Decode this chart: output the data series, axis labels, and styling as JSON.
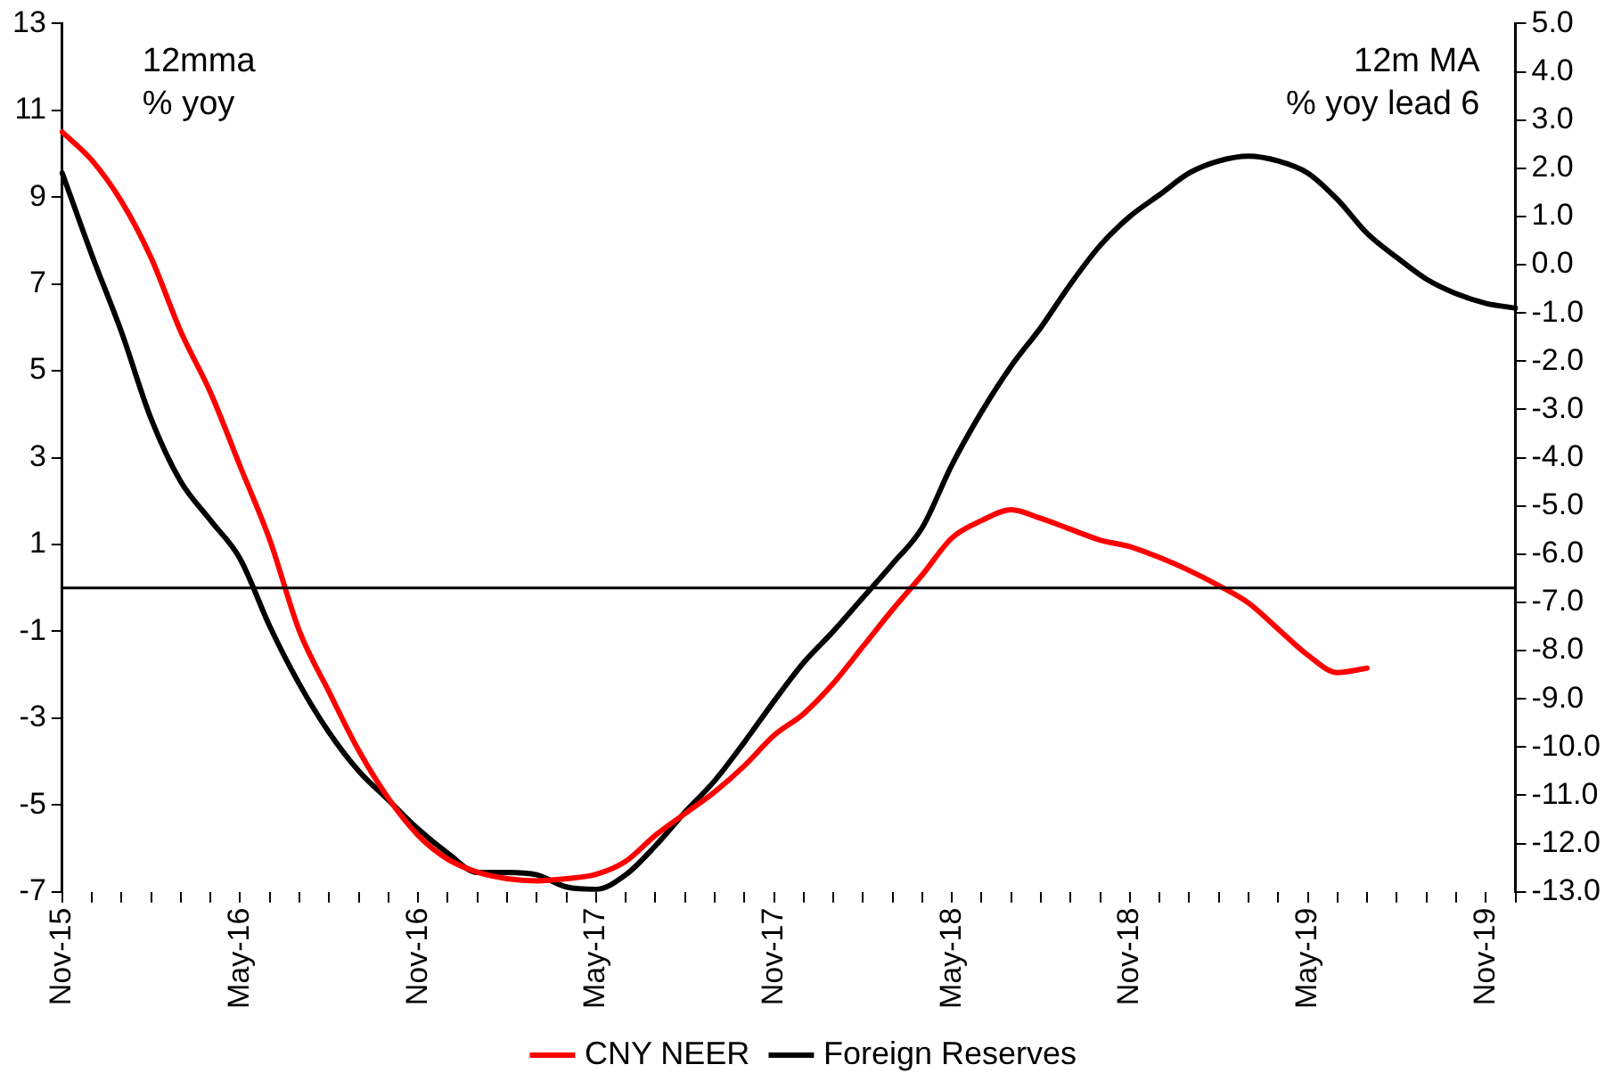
{
  "chart_data": {
    "type": "line",
    "categories": [
      "Nov-15",
      null,
      null,
      null,
      null,
      null,
      "May-16",
      null,
      null,
      null,
      null,
      null,
      "Nov-16",
      null,
      null,
      null,
      null,
      null,
      "May-17",
      null,
      null,
      null,
      null,
      null,
      "Nov-17",
      null,
      null,
      null,
      null,
      null,
      "May-18",
      null,
      null,
      null,
      null,
      null,
      "Nov-18",
      null,
      null,
      null,
      null,
      null,
      "May-19",
      null,
      null,
      null,
      null,
      null,
      "Nov-19",
      null
    ],
    "series": [
      {
        "name": "CNY NEER",
        "color": "#ff0000",
        "values": [
          10.5,
          9.85,
          8.9,
          7.6,
          5.9,
          4.5,
          2.8,
          1.1,
          -1.0,
          -2.4,
          -3.75,
          -4.85,
          -5.7,
          -6.25,
          -6.55,
          -6.7,
          -6.75,
          -6.7,
          -6.6,
          -6.3,
          -5.7,
          -5.2,
          -4.7,
          -4.1,
          -3.4,
          -2.9,
          -2.2,
          -1.35,
          -0.5,
          0.3,
          1.15,
          1.55,
          1.8,
          1.6,
          1.35,
          1.1,
          0.95,
          0.7,
          0.4,
          0.05,
          -0.35,
          -0.95,
          -1.55,
          -1.95,
          -1.85,
          null,
          null,
          null,
          null,
          null
        ]
      },
      {
        "name": "Foreign Reserves",
        "color": "#000000",
        "axis": "y2",
        "values": [
          1.9,
          0.2,
          -1.4,
          -3.2,
          -4.5,
          -5.3,
          -6.1,
          -7.5,
          -8.7,
          -9.7,
          -10.5,
          -11.1,
          -11.7,
          -12.2,
          -12.6,
          -12.6,
          -12.65,
          -12.9,
          -12.95,
          -12.65,
          -12.05,
          -11.35,
          -10.7,
          -9.9,
          -9.05,
          -8.25,
          -7.6,
          -6.9,
          -6.2,
          -5.45,
          -4.15,
          -3.05,
          -2.1,
          -1.3,
          -0.4,
          0.4,
          1.0,
          1.45,
          1.9,
          2.15,
          2.25,
          2.15,
          1.9,
          1.35,
          0.65,
          0.15,
          -0.3,
          -0.6,
          -0.8,
          -0.9
        ]
      }
    ],
    "ylim": [
      -7,
      13
    ],
    "yticks": [
      -7,
      -5,
      -3,
      -1,
      1,
      3,
      5,
      7,
      9,
      11,
      13
    ],
    "y2lim": [
      -13,
      5
    ],
    "y2ticks": [
      {
        "value": -13,
        "label": "-13.0"
      },
      {
        "value": -12,
        "label": "-12.0"
      },
      {
        "value": -11,
        "label": "-11.0"
      },
      {
        "value": -10,
        "label": "-10.0"
      },
      {
        "value": -9,
        "label": "-9.0"
      },
      {
        "value": -8,
        "label": "-8.0"
      },
      {
        "value": -7,
        "label": "-7.0"
      },
      {
        "value": -6,
        "label": "-6.0"
      },
      {
        "value": -5,
        "label": "-5.0"
      },
      {
        "value": -4,
        "label": "-4.0"
      },
      {
        "value": -3,
        "label": "-3.0"
      },
      {
        "value": -2,
        "label": "-2.0"
      },
      {
        "value": -1,
        "label": "-1.0"
      },
      {
        "value": 0,
        "label": "0.0"
      },
      {
        "value": 1,
        "label": "1.0"
      },
      {
        "value": 2,
        "label": "2.0"
      },
      {
        "value": 3,
        "label": "3.0"
      },
      {
        "value": 4,
        "label": "4.0"
      },
      {
        "value": 5,
        "label": "5.0"
      }
    ],
    "ref_lines": [
      {
        "axis": "y",
        "value": 0,
        "color": "#000000"
      }
    ],
    "annotations": [
      "12mma\n% yoy",
      "12m MA\n% yoy lead 6"
    ],
    "grid": false,
    "legend": "bottom",
    "marker": "none",
    "line_style": "solid"
  }
}
